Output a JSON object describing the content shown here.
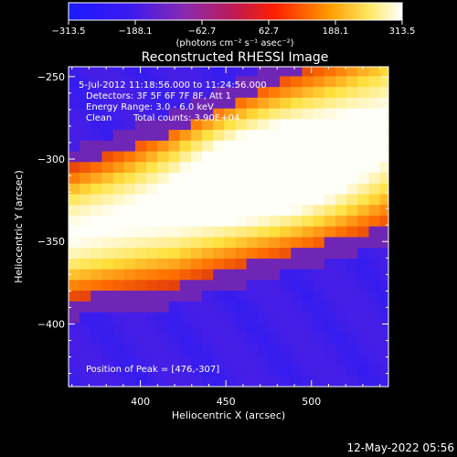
{
  "chart_data": {
    "type": "heatmap",
    "title": "Reconstructed RHESSI Image",
    "xlabel": "Heliocentric X (arcsec)",
    "ylabel": "Heliocentric Y (arcsec)",
    "xlim": [
      358,
      545
    ],
    "ylim": [
      -438,
      -244
    ],
    "x_ticks": [
      400,
      450,
      500
    ],
    "y_ticks": [
      -250,
      -300,
      -350,
      -400
    ],
    "x_tick_labels": [
      "400",
      "450",
      "500"
    ],
    "y_tick_labels": [
      "−250",
      "−300",
      "−350",
      "−400"
    ],
    "colorbar": {
      "range": [
        -313.5,
        313.5
      ],
      "tick_values": [
        -313.5,
        -188.1,
        -62.7,
        62.7,
        188.1,
        313.5
      ],
      "tick_labels": [
        "−313.5",
        "−188.1",
        "−62.7",
        "62.7",
        "188.1",
        "313.5"
      ],
      "unit_label": "(photons cm⁻² s⁻¹ asec⁻²)",
      "colors": [
        "#1a1aff",
        "#6a1fd0",
        "#a0208a",
        "#e01010",
        "#ff7a00",
        "#ffe040",
        "#ffffff"
      ]
    },
    "annotations": {
      "time_range": "5-Jul-2012 11:18:56.000 to 11:24:56.000",
      "detectors": "Detectors: 3F 5F 6F 7F 8F, Att 1",
      "energy_range": "Energy Range: 3.0 - 6.0 keV",
      "method": "Clean",
      "total_counts": "Total counts: 3.90E+04",
      "peak": "Position of Peak = [476,-307]"
    },
    "peak_position": [
      476,
      -307
    ],
    "peak_value": 313.5,
    "emission_band": {
      "description_points": [
        [
          358,
          -345
        ],
        [
          420,
          -330
        ],
        [
          476,
          -307
        ],
        [
          545,
          -280
        ]
      ]
    },
    "grid": false,
    "legend": "none"
  },
  "footer": {
    "timestamp": "12-May-2022 05:56"
  }
}
